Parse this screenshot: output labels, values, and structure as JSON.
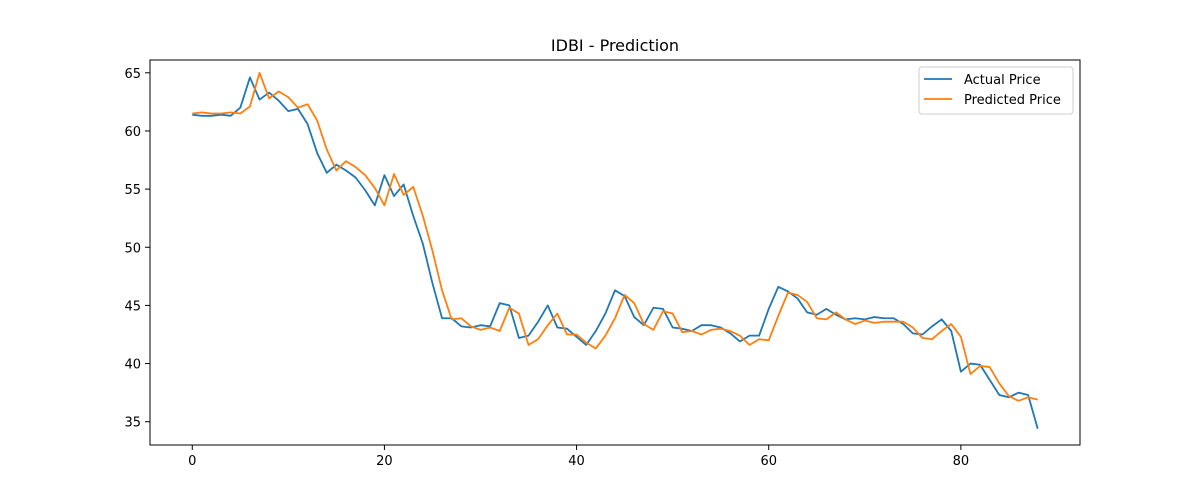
{
  "chart_data": {
    "type": "line",
    "title": "IDBI - Prediction",
    "xlabel": "",
    "ylabel": "",
    "xlim": [
      -4.4,
      92.4
    ],
    "ylim": [
      33.0,
      66.1
    ],
    "xticks": [
      0,
      20,
      40,
      60,
      80
    ],
    "yticks": [
      35,
      40,
      45,
      50,
      55,
      60,
      65
    ],
    "grid": false,
    "legend_position": "top-right",
    "series": [
      {
        "name": "Actual Price",
        "color": "#1f77b4",
        "x": [
          0,
          1,
          2,
          3,
          4,
          5,
          6,
          7,
          8,
          9,
          10,
          11,
          12,
          13,
          14,
          15,
          16,
          17,
          18,
          19,
          20,
          21,
          22,
          23,
          24,
          25,
          26,
          27,
          28,
          29,
          30,
          31,
          32,
          33,
          34,
          35,
          36,
          37,
          38,
          39,
          40,
          41,
          42,
          43,
          44,
          45,
          46,
          47,
          48,
          49,
          50,
          51,
          52,
          53,
          54,
          55,
          56,
          57,
          58,
          59,
          60,
          61,
          62,
          63,
          64,
          65,
          66,
          67,
          68,
          69,
          70,
          71,
          72,
          73,
          74,
          75,
          76,
          77,
          78,
          79,
          80,
          81,
          82,
          83,
          84,
          85,
          86,
          87,
          88
        ],
        "values": [
          61.4,
          61.3,
          61.3,
          61.4,
          61.3,
          62.0,
          64.6,
          62.7,
          63.3,
          62.6,
          61.7,
          61.9,
          60.6,
          58.1,
          56.4,
          57.1,
          56.6,
          56.0,
          54.9,
          53.6,
          56.2,
          54.4,
          55.4,
          52.7,
          50.3,
          46.9,
          43.9,
          43.9,
          43.2,
          43.1,
          43.3,
          43.2,
          45.2,
          45.0,
          42.2,
          42.4,
          43.6,
          45.0,
          43.1,
          43.0,
          42.3,
          41.6,
          42.8,
          44.3,
          46.3,
          45.8,
          44.0,
          43.3,
          44.8,
          44.7,
          43.1,
          43.0,
          42.8,
          43.3,
          43.3,
          43.1,
          42.6,
          41.9,
          42.4,
          42.4,
          44.7,
          46.6,
          46.2,
          45.6,
          44.4,
          44.2,
          44.7,
          44.2,
          43.8,
          43.9,
          43.8,
          44.0,
          43.9,
          43.9,
          43.4,
          42.6,
          42.5,
          43.2,
          43.8,
          42.8,
          39.3,
          40.0,
          39.9,
          38.6,
          37.3,
          37.1,
          37.5,
          37.3,
          34.4
        ]
      },
      {
        "name": "Predicted Price",
        "color": "#ff7f0e",
        "x": [
          0,
          1,
          2,
          3,
          4,
          5,
          6,
          7,
          8,
          9,
          10,
          11,
          12,
          13,
          14,
          15,
          16,
          17,
          18,
          19,
          20,
          21,
          22,
          23,
          24,
          25,
          26,
          27,
          28,
          29,
          30,
          31,
          32,
          33,
          34,
          35,
          36,
          37,
          38,
          39,
          40,
          41,
          42,
          43,
          44,
          45,
          46,
          47,
          48,
          49,
          50,
          51,
          52,
          53,
          54,
          55,
          56,
          57,
          58,
          59,
          60,
          61,
          62,
          63,
          64,
          65,
          66,
          67,
          68,
          69,
          70,
          71,
          72,
          73,
          74,
          75,
          76,
          77,
          78,
          79,
          80,
          81,
          82,
          83,
          84,
          85,
          86,
          87,
          88
        ],
        "values": [
          61.5,
          61.6,
          61.5,
          61.5,
          61.6,
          61.5,
          62.1,
          65.0,
          62.8,
          63.4,
          62.9,
          62.0,
          62.3,
          60.9,
          58.4,
          56.6,
          57.4,
          56.9,
          56.2,
          55.1,
          53.6,
          56.3,
          54.5,
          55.2,
          52.7,
          49.7,
          46.3,
          43.8,
          43.9,
          43.2,
          42.9,
          43.1,
          42.8,
          44.8,
          44.3,
          41.6,
          42.1,
          43.3,
          44.3,
          42.5,
          42.5,
          41.8,
          41.3,
          42.4,
          43.9,
          45.9,
          45.2,
          43.4,
          42.9,
          44.5,
          44.3,
          42.7,
          42.8,
          42.5,
          42.9,
          43.0,
          42.8,
          42.4,
          41.6,
          42.1,
          42.0,
          44.1,
          46.1,
          45.9,
          45.3,
          43.9,
          43.8,
          44.4,
          43.8,
          43.4,
          43.7,
          43.5,
          43.6,
          43.6,
          43.6,
          43.1,
          42.2,
          42.1,
          42.8,
          43.4,
          42.3,
          39.1,
          39.8,
          39.7,
          38.3,
          37.2,
          36.8,
          37.1,
          36.9
        ]
      }
    ]
  }
}
